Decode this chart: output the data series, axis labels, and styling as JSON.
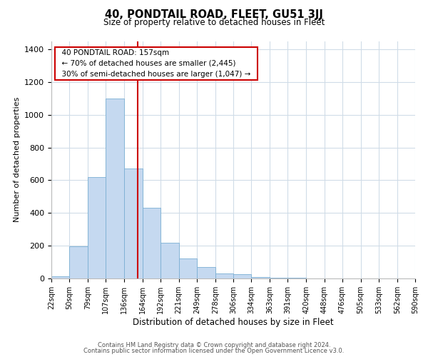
{
  "title": "40, PONDTAIL ROAD, FLEET, GU51 3JJ",
  "subtitle": "Size of property relative to detached houses in Fleet",
  "xlabel": "Distribution of detached houses by size in Fleet",
  "ylabel": "Number of detached properties",
  "bar_color": "#c5d9f0",
  "bar_edge_color": "#7bafd4",
  "background_color": "#ffffff",
  "grid_color": "#d0dce8",
  "annotation_box_color": "#ffffff",
  "annotation_box_edge": "#cc0000",
  "red_line_color": "#cc0000",
  "footnote1": "Contains HM Land Registry data © Crown copyright and database right 2024.",
  "footnote2": "Contains public sector information licensed under the Open Government Licence v3.0.",
  "property_size": 157,
  "annotation_line1": "40 PONDTAIL ROAD: 157sqm",
  "annotation_line2": "← 70% of detached houses are smaller (2,445)",
  "annotation_line3": "30% of semi-detached houses are larger (1,047) →",
  "bin_edges": [
    22,
    50,
    79,
    107,
    136,
    164,
    192,
    221,
    249,
    278,
    306,
    334,
    363,
    391,
    420,
    448,
    476,
    505,
    533,
    562,
    590
  ],
  "bar_heights": [
    15,
    195,
    620,
    1100,
    670,
    430,
    220,
    120,
    70,
    30,
    25,
    10,
    5,
    3,
    2,
    1,
    0,
    0,
    0,
    0
  ],
  "ylim": [
    0,
    1450
  ],
  "yticks": [
    0,
    200,
    400,
    600,
    800,
    1000,
    1200,
    1400
  ]
}
